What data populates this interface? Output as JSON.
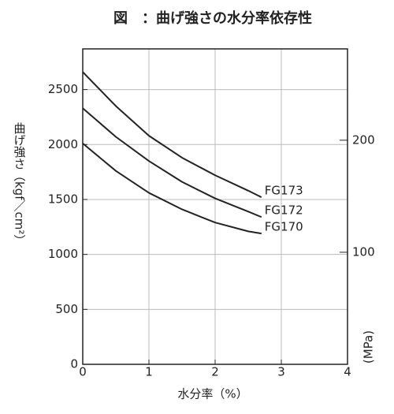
{
  "chart_data": {
    "type": "line",
    "title": "図　：曲げ強さの水分率依存性",
    "x_label": "水分率（%）",
    "y_label": "曲げ強さ（kgf／cm²）",
    "y2_label": "(MPa)",
    "x": [
      0,
      0.5,
      1,
      1.5,
      2,
      2.5,
      2.7
    ],
    "series": [
      {
        "name": "FG173",
        "color": "#222222",
        "values": [
          2660,
          2350,
          2080,
          1880,
          1720,
          1580,
          1520
        ]
      },
      {
        "name": "FG172",
        "color": "#222222",
        "values": [
          2330,
          2070,
          1850,
          1660,
          1510,
          1390,
          1340
        ]
      },
      {
        "name": "FG170",
        "color": "#222222",
        "values": [
          2010,
          1760,
          1560,
          1410,
          1290,
          1210,
          1190
        ]
      }
    ],
    "xlim": [
      0,
      4
    ],
    "xticks": [
      0,
      1,
      2,
      3,
      4
    ],
    "ylim": [
      0,
      2870
    ],
    "yticks": [
      0,
      500,
      1000,
      1500,
      2000,
      2500
    ],
    "y2lim": [
      0,
      281.5
    ],
    "y2ticks": [
      100,
      200
    ],
    "grid": true
  }
}
